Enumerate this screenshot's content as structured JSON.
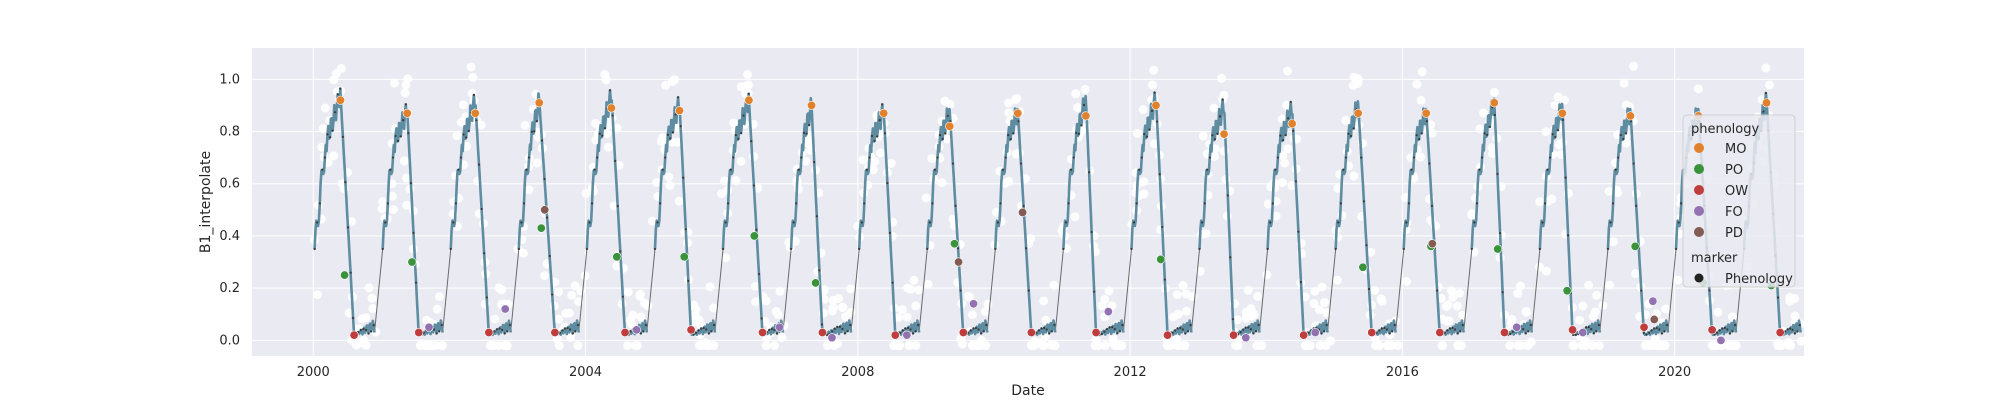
{
  "chart_data": {
    "type": "scatter",
    "xlabel": "Date",
    "ylabel": "B1_interpolate",
    "x_ticks": [
      "2000",
      "2004",
      "2008",
      "2012",
      "2016",
      "2020"
    ],
    "y_ticks": [
      "0.0",
      "0.2",
      "0.4",
      "0.6",
      "0.8",
      "1.0"
    ],
    "xlim": [
      1999.1,
      2021.9
    ],
    "ylim": [
      -0.06,
      1.12
    ],
    "grid": true,
    "legend_placement": "right",
    "legend": {
      "title_1": "phenology",
      "title_2": "marker",
      "items": [
        {
          "label": "MO",
          "color": "#e1812c"
        },
        {
          "label": "PO",
          "color": "#3a923a"
        },
        {
          "label": "OW",
          "color": "#c03d3e"
        },
        {
          "label": "FO",
          "color": "#9372b2"
        },
        {
          "label": "PD",
          "color": "#845b53"
        }
      ],
      "marker_item": {
        "label": "Phenology",
        "color": "#222222"
      }
    },
    "seasons": [
      {
        "mo": [
          2000.4,
          0.92
        ],
        "po": [
          2000.46,
          0.25
        ],
        "ow": [
          2000.6,
          0.02
        ],
        "peak": 0.94
      },
      {
        "mo": [
          2001.38,
          0.87
        ],
        "po": [
          2001.45,
          0.3
        ],
        "ow": [
          2001.55,
          0.03
        ],
        "fo": [
          2001.7,
          0.05
        ],
        "peak": 0.88
      },
      {
        "mo": [
          2002.38,
          0.87
        ],
        "ow": [
          2002.58,
          0.03
        ],
        "fo": [
          2002.82,
          0.12
        ],
        "peak": 0.92
      },
      {
        "mo": [
          2003.32,
          0.91
        ],
        "po": [
          2003.35,
          0.43
        ],
        "pd": [
          2003.4,
          0.5
        ],
        "ow": [
          2003.55,
          0.03
        ],
        "peak": 0.92
      },
      {
        "mo": [
          2004.38,
          0.89
        ],
        "po": [
          2004.46,
          0.32
        ],
        "ow": [
          2004.58,
          0.03
        ],
        "fo": [
          2004.75,
          0.04
        ],
        "peak": 0.94
      },
      {
        "mo": [
          2005.38,
          0.88
        ],
        "po": [
          2005.45,
          0.32
        ],
        "ow": [
          2005.55,
          0.04
        ],
        "peak": 0.91
      },
      {
        "mo": [
          2006.4,
          0.92
        ],
        "po": [
          2006.48,
          0.4
        ],
        "ow": [
          2006.6,
          0.03
        ],
        "fo": [
          2006.85,
          0.05
        ],
        "peak": 0.92
      },
      {
        "mo": [
          2007.32,
          0.9
        ],
        "po": [
          2007.38,
          0.22
        ],
        "ow": [
          2007.48,
          0.03
        ],
        "fo": [
          2007.62,
          0.01
        ],
        "peak": 0.9
      },
      {
        "mo": [
          2008.38,
          0.87
        ],
        "ow": [
          2008.55,
          0.02
        ],
        "fo": [
          2008.72,
          0.02
        ],
        "peak": 0.88
      },
      {
        "mo": [
          2009.35,
          0.82
        ],
        "po": [
          2009.42,
          0.37
        ],
        "pd": [
          2009.48,
          0.3
        ],
        "ow": [
          2009.55,
          0.03
        ],
        "fo": [
          2009.7,
          0.14
        ],
        "peak": 0.88
      },
      {
        "mo": [
          2010.35,
          0.87
        ],
        "pd": [
          2010.42,
          0.49
        ],
        "ow": [
          2010.55,
          0.03
        ],
        "peak": 0.88
      },
      {
        "mo": [
          2011.35,
          0.86
        ],
        "ow": [
          2011.5,
          0.03
        ],
        "fo": [
          2011.68,
          0.11
        ],
        "peak": 0.93
      },
      {
        "mo": [
          2012.38,
          0.9
        ],
        "po": [
          2012.45,
          0.31
        ],
        "ow": [
          2012.55,
          0.02
        ],
        "peak": 0.93
      },
      {
        "mo": [
          2013.38,
          0.79
        ],
        "ow": [
          2013.52,
          0.02
        ],
        "fo": [
          2013.7,
          0.01
        ],
        "peak": 0.9
      },
      {
        "mo": [
          2014.38,
          0.83
        ],
        "ow": [
          2014.55,
          0.02
        ],
        "fo": [
          2014.72,
          0.03
        ],
        "peak": 0.89
      },
      {
        "mo": [
          2015.35,
          0.87
        ],
        "po": [
          2015.42,
          0.28
        ],
        "ow": [
          2015.55,
          0.03
        ],
        "peak": 0.91
      },
      {
        "mo": [
          2016.35,
          0.87
        ],
        "po": [
          2016.42,
          0.36
        ],
        "pd": [
          2016.44,
          0.37
        ],
        "ow": [
          2016.55,
          0.03
        ],
        "peak": 0.88
      },
      {
        "mo": [
          2017.35,
          0.91
        ],
        "po": [
          2017.4,
          0.35
        ],
        "ow": [
          2017.5,
          0.03
        ],
        "fo": [
          2017.68,
          0.05
        ],
        "peak": 0.92
      },
      {
        "mo": [
          2018.35,
          0.87
        ],
        "po": [
          2018.42,
          0.19
        ],
        "ow": [
          2018.5,
          0.04
        ],
        "fo": [
          2018.65,
          0.03
        ],
        "peak": 0.9
      },
      {
        "mo": [
          2019.35,
          0.86
        ],
        "po": [
          2019.42,
          0.36
        ],
        "ow": [
          2019.55,
          0.05
        ],
        "fo": [
          2019.68,
          0.15
        ],
        "pd": [
          2019.7,
          0.08
        ],
        "peak": 0.88
      },
      {
        "mo": [
          2020.35,
          0.86
        ],
        "po": [
          2020.42,
          0.22
        ],
        "ow": [
          2020.55,
          0.04
        ],
        "fo": [
          2020.68,
          0.0
        ],
        "peak": 0.88
      },
      {
        "mo": [
          2021.35,
          0.91
        ],
        "po": [
          2021.42,
          0.21
        ],
        "ow": [
          2021.55,
          0.03
        ],
        "peak": 0.92
      }
    ],
    "colors": {
      "background": "#eaeaf2",
      "grid": "#ffffff",
      "curve": "#5e8ca0",
      "connector": "#6a6a6a",
      "raw_points": "#ffffff",
      "point_marks": "#3a3a3a"
    }
  }
}
